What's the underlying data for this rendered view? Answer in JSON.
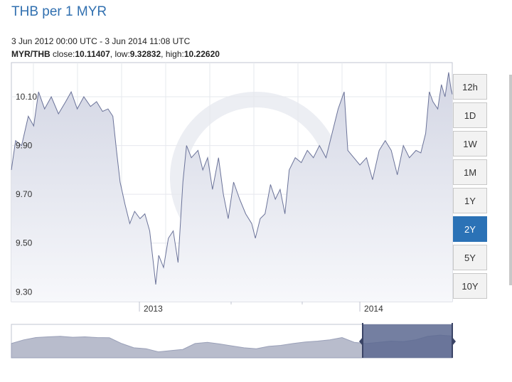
{
  "title": "THB per 1 MYR",
  "range_text": "3 Jun 2012 00:00 UTC - 3 Jun 2014 11:08 UTC",
  "stats": {
    "pair": "MYR/THB",
    "close_label": "close:",
    "close": "10.11407",
    "low_label": "low:",
    "low": "9.32832",
    "high_label": "high:",
    "high": "10.22620"
  },
  "periods": [
    "12h",
    "1D",
    "1W",
    "1M",
    "1Y",
    "2Y",
    "5Y",
    "10Y"
  ],
  "active_period": "2Y",
  "colors": {
    "title": "#3170b0",
    "line": "#6b7399",
    "area": "#d3d6e4",
    "accent": "#2b72b6",
    "navigator_mask": "#5c6890"
  },
  "chart_data": {
    "type": "area",
    "xlabel": "",
    "ylabel": "",
    "ylim": [
      9.26,
      10.24
    ],
    "yticks": [
      10.1,
      9.9,
      9.7,
      9.5,
      9.3
    ],
    "ytick_labels": [
      "10.10",
      "9.90",
      "9.70",
      "9.50",
      "9.30"
    ],
    "xlim": [
      "2012-06-03",
      "2014-06-03"
    ],
    "xticks": [
      "2013-01-01",
      "2014-01-01"
    ],
    "xtick_labels": [
      "2013",
      "2014"
    ],
    "grid": true,
    "series": [
      {
        "values": [
          [
            "2012-06-03",
            9.8
          ],
          [
            "2012-06-10",
            9.92
          ],
          [
            "2012-06-20",
            9.9
          ],
          [
            "2012-07-01",
            10.02
          ],
          [
            "2012-07-10",
            9.98
          ],
          [
            "2012-07-18",
            10.12
          ],
          [
            "2012-07-28",
            10.05
          ],
          [
            "2012-08-08",
            10.1
          ],
          [
            "2012-08-20",
            10.03
          ],
          [
            "2012-09-01",
            10.08
          ],
          [
            "2012-09-10",
            10.12
          ],
          [
            "2012-09-20",
            10.05
          ],
          [
            "2012-10-01",
            10.1
          ],
          [
            "2012-10-12",
            10.06
          ],
          [
            "2012-10-22",
            10.08
          ],
          [
            "2012-11-01",
            10.04
          ],
          [
            "2012-11-10",
            10.05
          ],
          [
            "2012-11-18",
            10.02
          ],
          [
            "2012-11-24",
            9.88
          ],
          [
            "2012-11-30",
            9.75
          ],
          [
            "2012-12-08",
            9.66
          ],
          [
            "2012-12-16",
            9.58
          ],
          [
            "2012-12-24",
            9.63
          ],
          [
            "2013-01-02",
            9.6
          ],
          [
            "2013-01-10",
            9.62
          ],
          [
            "2013-01-18",
            9.55
          ],
          [
            "2013-01-24",
            9.42
          ],
          [
            "2013-01-28",
            9.33
          ],
          [
            "2013-02-02",
            9.45
          ],
          [
            "2013-02-10",
            9.4
          ],
          [
            "2013-02-18",
            9.52
          ],
          [
            "2013-02-26",
            9.55
          ],
          [
            "2013-03-06",
            9.42
          ],
          [
            "2013-03-14",
            9.75
          ],
          [
            "2013-03-20",
            9.9
          ],
          [
            "2013-03-28",
            9.85
          ],
          [
            "2013-04-08",
            9.88
          ],
          [
            "2013-04-16",
            9.8
          ],
          [
            "2013-04-24",
            9.85
          ],
          [
            "2013-05-02",
            9.72
          ],
          [
            "2013-05-12",
            9.85
          ],
          [
            "2013-05-20",
            9.7
          ],
          [
            "2013-05-28",
            9.6
          ],
          [
            "2013-06-06",
            9.75
          ],
          [
            "2013-06-16",
            9.68
          ],
          [
            "2013-06-26",
            9.62
          ],
          [
            "2013-07-06",
            9.58
          ],
          [
            "2013-07-12",
            9.52
          ],
          [
            "2013-07-20",
            9.6
          ],
          [
            "2013-07-28",
            9.62
          ],
          [
            "2013-08-06",
            9.74
          ],
          [
            "2013-08-14",
            9.68
          ],
          [
            "2013-08-22",
            9.72
          ],
          [
            "2013-08-30",
            9.62
          ],
          [
            "2013-09-06",
            9.8
          ],
          [
            "2013-09-16",
            9.85
          ],
          [
            "2013-09-26",
            9.83
          ],
          [
            "2013-10-06",
            9.88
          ],
          [
            "2013-10-16",
            9.85
          ],
          [
            "2013-10-26",
            9.9
          ],
          [
            "2013-11-06",
            9.85
          ],
          [
            "2013-11-16",
            9.95
          ],
          [
            "2013-11-26",
            10.05
          ],
          [
            "2013-12-06",
            10.12
          ],
          [
            "2013-12-12",
            9.88
          ],
          [
            "2013-12-22",
            9.85
          ],
          [
            "2014-01-01",
            9.82
          ],
          [
            "2014-01-12",
            9.85
          ],
          [
            "2014-01-22",
            9.76
          ],
          [
            "2014-02-02",
            9.88
          ],
          [
            "2014-02-12",
            9.92
          ],
          [
            "2014-02-22",
            9.88
          ],
          [
            "2014-03-04",
            9.78
          ],
          [
            "2014-03-14",
            9.9
          ],
          [
            "2014-03-24",
            9.85
          ],
          [
            "2014-04-04",
            9.88
          ],
          [
            "2014-04-12",
            9.87
          ],
          [
            "2014-04-20",
            9.95
          ],
          [
            "2014-04-26",
            10.12
          ],
          [
            "2014-05-02",
            10.08
          ],
          [
            "2014-05-10",
            10.05
          ],
          [
            "2014-05-16",
            10.15
          ],
          [
            "2014-05-22",
            10.1
          ],
          [
            "2014-05-28",
            10.2
          ],
          [
            "2014-06-01",
            10.13
          ],
          [
            "2014-06-03",
            10.11
          ]
        ]
      }
    ],
    "navigator_values": [
      9.8,
      9.95,
      10.05,
      10.08,
      10.1,
      10.06,
      10.08,
      10.05,
      10.04,
      9.8,
      9.62,
      9.58,
      9.45,
      9.5,
      9.55,
      9.8,
      9.85,
      9.78,
      9.7,
      9.62,
      9.58,
      9.68,
      9.72,
      9.8,
      9.86,
      9.9,
      9.95,
      10.05,
      9.85,
      9.8,
      9.85,
      9.9,
      9.88,
      9.95,
      10.1,
      10.15,
      10.11
    ]
  }
}
